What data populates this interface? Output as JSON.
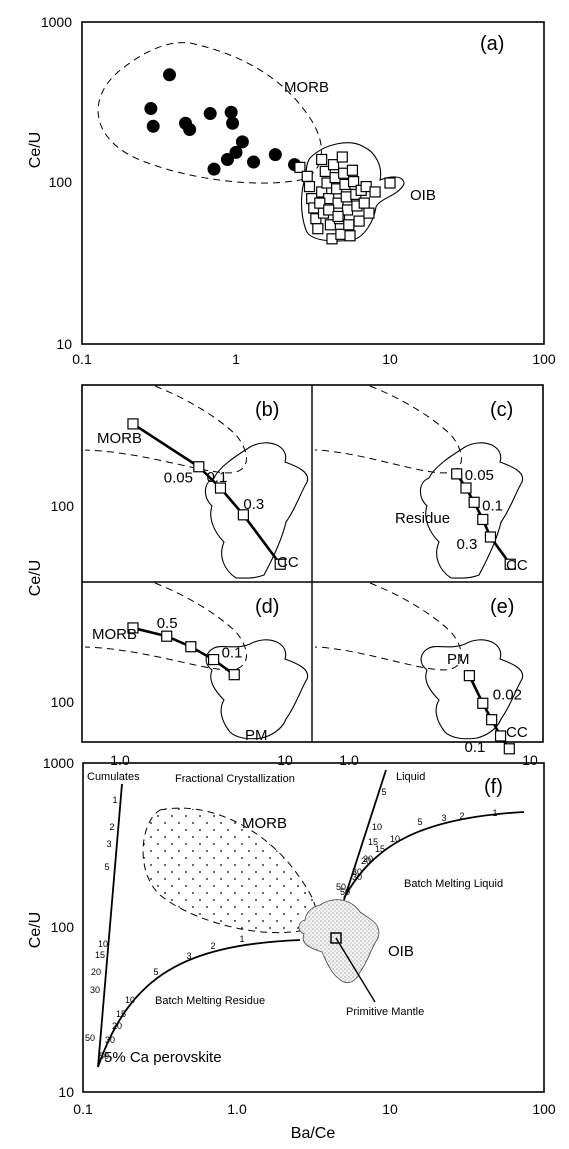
{
  "chart_data": [
    {
      "panel": "(a)",
      "type": "scatter",
      "xlabel": "",
      "ylabel": "Ce/U",
      "xscale": "log",
      "yscale": "log",
      "xlim": [
        0.1,
        100
      ],
      "ylim": [
        10,
        1000
      ],
      "xticks": [
        "0.1",
        "1",
        "10",
        "100"
      ],
      "yticks": [
        "10",
        "100",
        "1000"
      ],
      "annotations": [
        "MORB",
        "OIB"
      ],
      "series": [
        {
          "name": "MORB",
          "marker": "filled-circle",
          "points": [
            [
              0.37,
              470
            ],
            [
              0.28,
              290
            ],
            [
              0.29,
              225
            ],
            [
              0.47,
              235
            ],
            [
              0.5,
              215
            ],
            [
              0.68,
              270
            ],
            [
              0.93,
              275
            ],
            [
              0.95,
              235
            ],
            [
              0.88,
              140
            ],
            [
              1.1,
              180
            ],
            [
              1.0,
              155
            ],
            [
              1.3,
              135
            ],
            [
              0.72,
              122
            ],
            [
              1.8,
              150
            ],
            [
              2.4,
              130
            ]
          ]
        },
        {
          "name": "OIB",
          "marker": "open-square",
          "points": [
            [
              2.6,
              125
            ],
            [
              2.9,
              110
            ],
            [
              3.0,
              95
            ],
            [
              3.1,
              80
            ],
            [
              3.2,
              70
            ],
            [
              3.3,
              60
            ],
            [
              3.4,
              52
            ],
            [
              3.6,
              140
            ],
            [
              3.6,
              88
            ],
            [
              3.7,
              65
            ],
            [
              3.8,
              118
            ],
            [
              3.9,
              100
            ],
            [
              4.0,
              80
            ],
            [
              4.1,
              55
            ],
            [
              4.2,
              45
            ],
            [
              4.3,
              130
            ],
            [
              4.4,
              108
            ],
            [
              4.5,
              92
            ],
            [
              4.6,
              75
            ],
            [
              4.7,
              60
            ],
            [
              4.8,
              48
            ],
            [
              4.9,
              145
            ],
            [
              5.0,
              115
            ],
            [
              5.1,
              98
            ],
            [
              5.2,
              82
            ],
            [
              5.3,
              68
            ],
            [
              5.4,
              55
            ],
            [
              5.5,
              47
            ],
            [
              5.7,
              120
            ],
            [
              5.8,
              102
            ],
            [
              6.0,
              85
            ],
            [
              6.1,
              72
            ],
            [
              6.3,
              58
            ],
            [
              6.5,
              90
            ],
            [
              6.8,
              75
            ],
            [
              7.0,
              95
            ],
            [
              7.3,
              65
            ],
            [
              3.5,
              75
            ],
            [
              4.0,
              68
            ],
            [
              4.6,
              62
            ],
            [
              8.0,
              88
            ],
            [
              10.0,
              100
            ]
          ]
        }
      ]
    },
    {
      "panel": "(b)",
      "type": "line",
      "annotations": [
        "MORB",
        "CC"
      ],
      "series": [
        {
          "name": "",
          "points": [
            [
              0.85,
              165
            ],
            [
              2.25,
              100
            ],
            [
              3.1,
              78
            ],
            [
              4.35,
              57
            ],
            [
              7.5,
              32
            ]
          ],
          "labels": [
            "",
            "0.05",
            "0.1",
            "0.3",
            ""
          ]
        }
      ]
    },
    {
      "panel": "(c)",
      "type": "line",
      "annotations": [
        "Residue",
        "CC"
      ],
      "series": [
        {
          "name": "",
          "points": [
            [
              3.4,
              92
            ],
            [
              3.9,
              78
            ],
            [
              4.4,
              66
            ],
            [
              5.0,
              54
            ],
            [
              5.6,
              44
            ],
            [
              7.5,
              32
            ]
          ],
          "labels": [
            "0.05",
            "",
            "0.1",
            "",
            "0.3",
            ""
          ]
        }
      ]
    },
    {
      "panel": "(d)",
      "type": "line",
      "annotations": [
        "MORB",
        "PM"
      ],
      "series": [
        {
          "name": "",
          "points": [
            [
              0.85,
              152
            ],
            [
              1.4,
              138
            ],
            [
              2.0,
              122
            ],
            [
              2.8,
              105
            ],
            [
              3.8,
              88
            ]
          ],
          "labels": [
            "",
            "0.5",
            "",
            "0.1",
            ""
          ]
        }
      ]
    },
    {
      "panel": "(e)",
      "type": "line",
      "annotations": [
        "PM",
        "CC"
      ],
      "series": [
        {
          "name": "",
          "points": [
            [
              4.1,
              87
            ],
            [
              5.0,
              63
            ],
            [
              5.7,
              52
            ],
            [
              6.5,
              43
            ],
            [
              7.4,
              37
            ]
          ],
          "labels": [
            "",
            "0.02",
            "",
            "0.1",
            ""
          ]
        }
      ]
    },
    {
      "panel_group": "(b)-(e)",
      "xlabel": "",
      "ylabel": "Ce/U",
      "xscale": "log",
      "yscale": "log",
      "xticks": [
        "1.0",
        "10"
      ],
      "yticks": [
        "100"
      ]
    },
    {
      "panel": "(f)",
      "type": "line",
      "xlabel": "Ba/Ce",
      "ylabel": "Ce/U",
      "xscale": "log",
      "yscale": "log",
      "xlim": [
        0.1,
        100
      ],
      "ylim": [
        10,
        1000
      ],
      "xticks": [
        "0.1",
        "1.0",
        "10",
        "100"
      ],
      "yticks": [
        "10",
        "100",
        "1000"
      ],
      "annotations": [
        "Cumulates",
        "Fractional Crystallization",
        "Liquid",
        "MORB",
        "Batch Melting Liquid",
        "OIB",
        "Batch Melting Residue",
        "Primitive Mantle",
        "5% Ca perovskite"
      ],
      "series": [
        {
          "name": "Cumulates",
          "ticks": [
            "1",
            "2",
            "3",
            "5",
            "10",
            "15",
            "20",
            "30",
            "50"
          ]
        },
        {
          "name": "Liquid",
          "ticks": [
            "5",
            "10",
            "15",
            "20",
            "30",
            "50"
          ]
        },
        {
          "name": "Batch Melting Liquid",
          "ticks": [
            "50",
            "30",
            "20",
            "15",
            "10",
            "5",
            "3",
            "2",
            "1"
          ]
        },
        {
          "name": "Batch Melting Residue",
          "ticks": [
            "50",
            "30",
            "20",
            "15",
            "10",
            "5",
            "3",
            "2",
            "1"
          ]
        }
      ],
      "marker": {
        "name": "Primitive Mantle",
        "point": [
          4.0,
          90
        ]
      }
    }
  ]
}
